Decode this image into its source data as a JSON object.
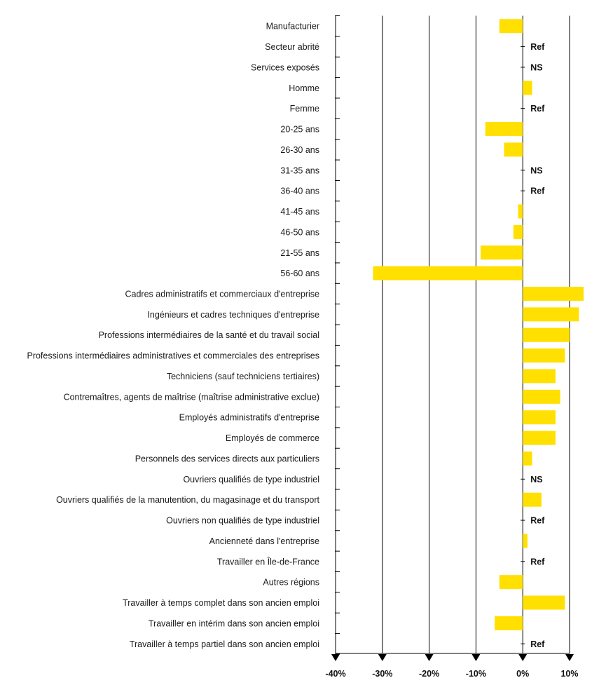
{
  "chart_data": {
    "type": "bar",
    "orientation": "horizontal",
    "bar_color": "#FFE000",
    "xlim": [
      -40,
      10
    ],
    "grid": true,
    "categories": [
      "Manufacturier",
      "Secteur abrité",
      "Services exposés",
      "Homme",
      "Femme",
      "20-25 ans",
      "26-30 ans",
      "31-35 ans",
      "36-40 ans",
      "41-45 ans",
      "46-50 ans",
      "21-55 ans",
      "56-60 ans",
      "Cadres administratifs et commerciaux d'entreprise",
      "Ingénieurs et cadres techniques d'entreprise",
      "Professions intermédiaires de la santé et du travail social",
      "Professions intermédiaires administratives et commerciales des entreprises",
      "Techniciens (sauf techniciens tertiaires)",
      "Contremaîtres, agents de maîtrise (maîtrise administrative exclue)",
      "Employés administratifs d'entreprise",
      "Employés de commerce",
      "Personnels des services directs aux particuliers",
      "Ouvriers qualifiés de type industriel",
      "Ouvriers qualifiés de la manutention, du magasinage et du transport",
      "Ouvriers non qualifiés de type industriel",
      "Ancienneté dans l'entreprise",
      "Travailler en Île-de-France",
      "Autres régions ",
      "Travailler à temps complet dans son ancien emploi",
      "Travailler en intérim dans son ancien emploi",
      "Travailler à temps partiel dans son ancien emploi"
    ],
    "values": [
      -5,
      0,
      0,
      2,
      0,
      -8,
      -4,
      0,
      0,
      -1,
      -2,
      -9,
      -32,
      13,
      12,
      10,
      9,
      7,
      8,
      7,
      7,
      2,
      0,
      4,
      0,
      1,
      0,
      -5,
      9,
      -6,
      0
    ],
    "notes": [
      "",
      "Ref",
      "NS",
      "",
      "Ref",
      "",
      "",
      "NS",
      "Ref",
      "",
      "",
      "",
      "",
      "",
      "",
      "",
      "",
      "",
      "",
      "",
      "",
      "",
      "NS",
      "",
      "Ref",
      "",
      "Ref",
      "",
      "",
      "",
      "Ref"
    ],
    "x_ticks": [
      -40,
      -30,
      -20,
      -10,
      0,
      10
    ],
    "x_tick_labels": [
      "-40%",
      "-30%",
      "-20%",
      "-10%",
      "0%",
      "10%"
    ]
  }
}
